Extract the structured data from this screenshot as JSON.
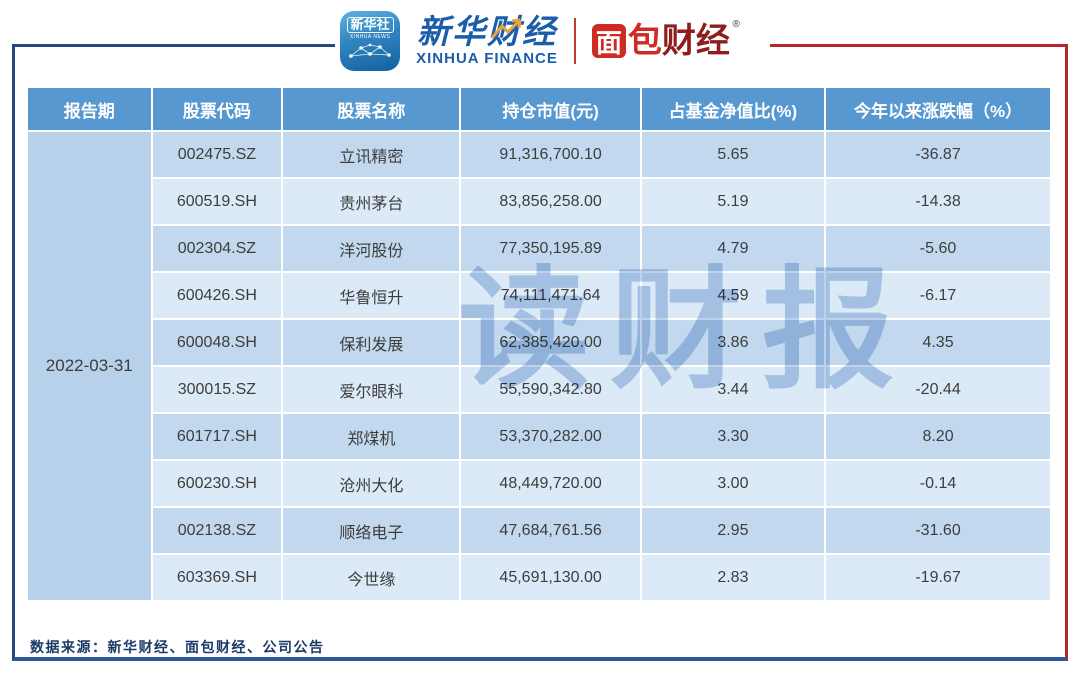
{
  "brand": {
    "xinhua_news_icon_line1": "新华社",
    "xinhua_news_icon_line2": "XINHUA NEWS",
    "xinhua_finance_cn": "新华财经",
    "xinhua_finance_en": "XINHUA FINANCE",
    "mianbao_char1": "面",
    "mianbao_char2": "包",
    "mianbao_char3": "财经",
    "registered_mark": "®"
  },
  "chart_data": {
    "type": "table",
    "title": "",
    "columns": [
      "报告期",
      "股票代码",
      "股票名称",
      "持仓市值(元)",
      "占基金净值比(%)",
      "今年以来涨跌幅（%）"
    ],
    "report_period": "2022-03-31",
    "rows": [
      [
        "002475.SZ",
        "立讯精密",
        "91,316,700.10",
        "5.65",
        "-36.87"
      ],
      [
        "600519.SH",
        "贵州茅台",
        "83,856,258.00",
        "5.19",
        "-14.38"
      ],
      [
        "002304.SZ",
        "洋河股份",
        "77,350,195.89",
        "4.79",
        "-5.60"
      ],
      [
        "600426.SH",
        "华鲁恒升",
        "74,111,471.64",
        "4.59",
        "-6.17"
      ],
      [
        "600048.SH",
        "保利发展",
        "62,385,420.00",
        "3.86",
        "4.35"
      ],
      [
        "300015.SZ",
        "爱尔眼科",
        "55,590,342.80",
        "3.44",
        "-20.44"
      ],
      [
        "601717.SH",
        "郑煤机",
        "53,370,282.00",
        "3.30",
        "8.20"
      ],
      [
        "600230.SH",
        "沧州大化",
        "48,449,720.00",
        "3.00",
        "-0.14"
      ],
      [
        "002138.SZ",
        "顺络电子",
        "47,684,761.56",
        "2.95",
        "-31.60"
      ],
      [
        "603369.SH",
        "今世缘",
        "45,691,130.00",
        "2.83",
        "-19.67"
      ]
    ]
  },
  "watermark": "读财报",
  "footer": {
    "source": "数据来源：新华财经、面包财经、公司公告"
  },
  "colors": {
    "header_band": "#5898d1",
    "row_dark": "#c2d8ee",
    "row_light": "#dceaf8",
    "date_column": "#b7d1ea",
    "frame_navy": "#24477e",
    "frame_red": "#b3282d",
    "brand_blue": "#1a5dab",
    "brand_red": "#cf2b24",
    "footer_text": "#1b3a66"
  }
}
